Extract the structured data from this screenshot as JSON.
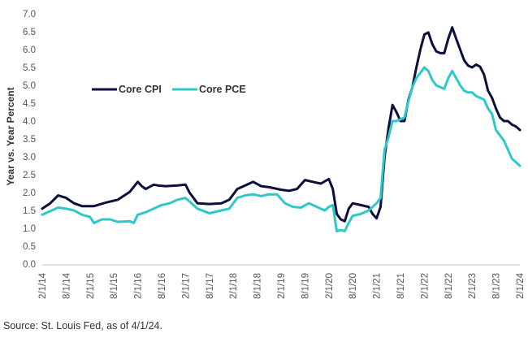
{
  "source_note": "Source: St. Louis Fed, as of 4/1/24.",
  "chart_data": {
    "type": "line",
    "title": "",
    "xlabel": "",
    "ylabel": "Year vs. Year Percent",
    "ylim": [
      0.0,
      7.0
    ],
    "yticks": [
      "0.0",
      "0.5",
      "1.0",
      "1.5",
      "2.0",
      "2.5",
      "3.0",
      "3.5",
      "4.0",
      "4.5",
      "5.0",
      "5.5",
      "6.0",
      "6.5",
      "7.0"
    ],
    "xticks": [
      "2/1/14",
      "8/1/14",
      "2/1/15",
      "8/1/15",
      "2/1/16",
      "8/1/16",
      "2/1/17",
      "8/1/17",
      "2/1/18",
      "8/1/18",
      "2/1/19",
      "8/1/19",
      "2/1/20",
      "8/1/20",
      "2/1/21",
      "8/1/21",
      "2/1/22",
      "8/1/22",
      "2/1/23",
      "8/1/23",
      "2/1/24"
    ],
    "grid": false,
    "legend_position": "upper-left",
    "x_start": "2014-02",
    "x_end": "2024-02",
    "series": [
      {
        "name": "Core CPI",
        "color": "#0b0f3d",
        "points": [
          [
            "2014-02",
            1.55
          ],
          [
            "2014-04",
            1.7
          ],
          [
            "2014-06",
            1.92
          ],
          [
            "2014-08",
            1.85
          ],
          [
            "2014-10",
            1.7
          ],
          [
            "2014-12",
            1.62
          ],
          [
            "2015-03",
            1.62
          ],
          [
            "2015-06",
            1.72
          ],
          [
            "2015-09",
            1.8
          ],
          [
            "2015-12",
            2.02
          ],
          [
            "2016-02",
            2.3
          ],
          [
            "2016-03",
            2.18
          ],
          [
            "2016-04",
            2.1
          ],
          [
            "2016-06",
            2.22
          ],
          [
            "2016-07",
            2.2
          ],
          [
            "2016-09",
            2.18
          ],
          [
            "2016-12",
            2.2
          ],
          [
            "2017-02",
            2.22
          ],
          [
            "2017-03",
            2.0
          ],
          [
            "2017-05",
            1.7
          ],
          [
            "2017-08",
            1.68
          ],
          [
            "2017-11",
            1.7
          ],
          [
            "2018-01",
            1.8
          ],
          [
            "2018-03",
            2.1
          ],
          [
            "2018-05",
            2.2
          ],
          [
            "2018-07",
            2.3
          ],
          [
            "2018-09",
            2.18
          ],
          [
            "2018-11",
            2.15
          ],
          [
            "2019-02",
            2.08
          ],
          [
            "2019-04",
            2.05
          ],
          [
            "2019-06",
            2.1
          ],
          [
            "2019-08",
            2.35
          ],
          [
            "2019-10",
            2.3
          ],
          [
            "2019-12",
            2.25
          ],
          [
            "2020-02",
            2.38
          ],
          [
            "2020-03",
            2.1
          ],
          [
            "2020-04",
            1.4
          ],
          [
            "2020-05",
            1.25
          ],
          [
            "2020-06",
            1.2
          ],
          [
            "2020-07",
            1.55
          ],
          [
            "2020-08",
            1.7
          ],
          [
            "2020-10",
            1.65
          ],
          [
            "2020-12",
            1.6
          ],
          [
            "2021-01",
            1.4
          ],
          [
            "2021-02",
            1.28
          ],
          [
            "2021-03",
            1.6
          ],
          [
            "2021-04",
            3.0
          ],
          [
            "2021-05",
            3.8
          ],
          [
            "2021-06",
            4.45
          ],
          [
            "2021-07",
            4.25
          ],
          [
            "2021-08",
            4.0
          ],
          [
            "2021-09",
            4.0
          ],
          [
            "2021-10",
            4.6
          ],
          [
            "2021-11",
            4.95
          ],
          [
            "2021-12",
            5.5
          ],
          [
            "2022-01",
            6.0
          ],
          [
            "2022-02",
            6.42
          ],
          [
            "2022-03",
            6.48
          ],
          [
            "2022-04",
            6.15
          ],
          [
            "2022-05",
            5.95
          ],
          [
            "2022-06",
            5.9
          ],
          [
            "2022-07",
            5.9
          ],
          [
            "2022-08",
            6.3
          ],
          [
            "2022-09",
            6.62
          ],
          [
            "2022-10",
            6.3
          ],
          [
            "2022-11",
            6.0
          ],
          [
            "2022-12",
            5.7
          ],
          [
            "2023-01",
            5.55
          ],
          [
            "2023-02",
            5.5
          ],
          [
            "2023-03",
            5.58
          ],
          [
            "2023-04",
            5.52
          ],
          [
            "2023-05",
            5.3
          ],
          [
            "2023-06",
            4.85
          ],
          [
            "2023-07",
            4.65
          ],
          [
            "2023-08",
            4.35
          ],
          [
            "2023-09",
            4.1
          ],
          [
            "2023-10",
            4.0
          ],
          [
            "2023-11",
            4.0
          ],
          [
            "2023-12",
            3.9
          ],
          [
            "2024-01",
            3.85
          ],
          [
            "2024-02",
            3.75
          ]
        ]
      },
      {
        "name": "Core PCE",
        "color": "#2ec8c8",
        "points": [
          [
            "2014-02",
            1.38
          ],
          [
            "2014-04",
            1.48
          ],
          [
            "2014-06",
            1.58
          ],
          [
            "2014-08",
            1.55
          ],
          [
            "2014-10",
            1.5
          ],
          [
            "2014-12",
            1.38
          ],
          [
            "2015-02",
            1.32
          ],
          [
            "2015-03",
            1.15
          ],
          [
            "2015-05",
            1.25
          ],
          [
            "2015-07",
            1.25
          ],
          [
            "2015-09",
            1.18
          ],
          [
            "2015-12",
            1.2
          ],
          [
            "2016-01",
            1.15
          ],
          [
            "2016-02",
            1.38
          ],
          [
            "2016-04",
            1.45
          ],
          [
            "2016-06",
            1.55
          ],
          [
            "2016-08",
            1.65
          ],
          [
            "2016-10",
            1.7
          ],
          [
            "2016-12",
            1.8
          ],
          [
            "2017-02",
            1.85
          ],
          [
            "2017-03",
            1.75
          ],
          [
            "2017-05",
            1.55
          ],
          [
            "2017-08",
            1.42
          ],
          [
            "2017-11",
            1.5
          ],
          [
            "2018-01",
            1.55
          ],
          [
            "2018-03",
            1.85
          ],
          [
            "2018-05",
            1.92
          ],
          [
            "2018-07",
            1.95
          ],
          [
            "2018-09",
            1.9
          ],
          [
            "2018-11",
            1.95
          ],
          [
            "2019-01",
            1.95
          ],
          [
            "2019-03",
            1.7
          ],
          [
            "2019-05",
            1.6
          ],
          [
            "2019-07",
            1.58
          ],
          [
            "2019-09",
            1.7
          ],
          [
            "2019-11",
            1.6
          ],
          [
            "2020-01",
            1.5
          ],
          [
            "2020-02",
            1.6
          ],
          [
            "2020-03",
            1.65
          ],
          [
            "2020-04",
            0.92
          ],
          [
            "2020-05",
            0.95
          ],
          [
            "2020-06",
            0.92
          ],
          [
            "2020-07",
            1.15
          ],
          [
            "2020-08",
            1.35
          ],
          [
            "2020-10",
            1.4
          ],
          [
            "2020-12",
            1.5
          ],
          [
            "2021-01",
            1.6
          ],
          [
            "2021-02",
            1.7
          ],
          [
            "2021-03",
            1.85
          ],
          [
            "2021-04",
            3.2
          ],
          [
            "2021-05",
            3.55
          ],
          [
            "2021-06",
            4.0
          ],
          [
            "2021-07",
            4.0
          ],
          [
            "2021-08",
            4.05
          ],
          [
            "2021-09",
            4.1
          ],
          [
            "2021-10",
            4.55
          ],
          [
            "2021-11",
            4.95
          ],
          [
            "2021-12",
            5.2
          ],
          [
            "2022-01",
            5.35
          ],
          [
            "2022-02",
            5.5
          ],
          [
            "2022-03",
            5.4
          ],
          [
            "2022-04",
            5.15
          ],
          [
            "2022-05",
            5.0
          ],
          [
            "2022-06",
            4.95
          ],
          [
            "2022-07",
            4.9
          ],
          [
            "2022-08",
            5.2
          ],
          [
            "2022-09",
            5.4
          ],
          [
            "2022-10",
            5.2
          ],
          [
            "2022-11",
            5.0
          ],
          [
            "2022-12",
            4.85
          ],
          [
            "2023-01",
            4.8
          ],
          [
            "2023-02",
            4.8
          ],
          [
            "2023-03",
            4.7
          ],
          [
            "2023-04",
            4.65
          ],
          [
            "2023-05",
            4.6
          ],
          [
            "2023-06",
            4.35
          ],
          [
            "2023-07",
            4.2
          ],
          [
            "2023-08",
            3.75
          ],
          [
            "2023-09",
            3.6
          ],
          [
            "2023-10",
            3.45
          ],
          [
            "2023-11",
            3.2
          ],
          [
            "2023-12",
            2.95
          ],
          [
            "2024-01",
            2.85
          ],
          [
            "2024-02",
            2.75
          ]
        ]
      }
    ]
  }
}
